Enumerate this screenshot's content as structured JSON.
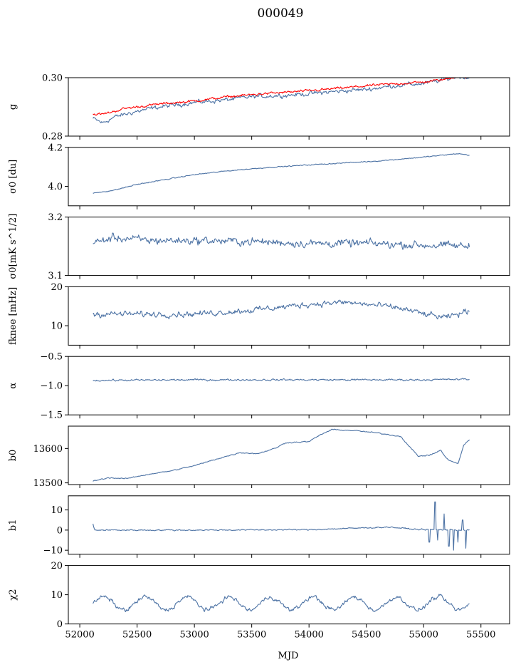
{
  "title": "000049",
  "colors": {
    "series_primary": "#4c72a4",
    "series_red": "#ff0000"
  },
  "chart_data": {
    "type": "line",
    "xlabel": "MJD",
    "xlim": [
      51900,
      55750
    ],
    "xticks": [
      52000,
      52500,
      53000,
      53500,
      54000,
      54500,
      55000,
      55500
    ],
    "xtick_labels": [
      "52000",
      "52500",
      "53000",
      "53500",
      "54000",
      "54500",
      "55000",
      "55500"
    ],
    "x_data_range": [
      52115,
      55400
    ],
    "panels": [
      {
        "ylabel": "g",
        "ylim": [
          0.28,
          0.3
        ],
        "yticks": [
          0.28,
          0.3
        ],
        "ytick_labels": [
          "0.28",
          "0.30"
        ],
        "series": [
          {
            "color": "#4c72a4",
            "points": [
              [
                52115,
                0.286
              ],
              [
                52200,
                0.2845
              ],
              [
                52300,
                0.2865
              ],
              [
                52500,
                0.2885
              ],
              [
                52700,
                0.29
              ],
              [
                53000,
                0.2915
              ],
              [
                53300,
                0.2925
              ],
              [
                53500,
                0.2935
              ],
              [
                53800,
                0.294
              ],
              [
                54000,
                0.2945
              ],
              [
                54300,
                0.2955
              ],
              [
                54500,
                0.296
              ],
              [
                54800,
                0.2975
              ],
              [
                55000,
                0.298
              ],
              [
                55200,
                0.2995
              ],
              [
                55300,
                0.3005
              ],
              [
                55400,
                0.3
              ]
            ],
            "noise": 0.0012
          },
          {
            "color": "#ff0000",
            "points": [
              [
                52115,
                0.2875
              ],
              [
                52200,
                0.2875
              ],
              [
                52400,
                0.2895
              ],
              [
                52700,
                0.291
              ],
              [
                53000,
                0.292
              ],
              [
                53300,
                0.2935
              ],
              [
                53600,
                0.2945
              ],
              [
                54000,
                0.2955
              ],
              [
                54300,
                0.2965
              ],
              [
                54600,
                0.2975
              ],
              [
                55000,
                0.2985
              ],
              [
                55200,
                0.2995
              ],
              [
                55300,
                0.3005
              ],
              [
                55400,
                0.3
              ]
            ],
            "noise": 0.0007
          }
        ]
      },
      {
        "ylabel": "σ0 [du]",
        "ylim": [
          3.9,
          4.2
        ],
        "yticks": [
          4.0,
          4.2
        ],
        "ytick_labels": [
          "4.0",
          "4.2"
        ],
        "series": [
          {
            "color": "#4c72a4",
            "points": [
              [
                52115,
                3.965
              ],
              [
                52300,
                3.98
              ],
              [
                52500,
                4.01
              ],
              [
                52800,
                4.04
              ],
              [
                53000,
                4.06
              ],
              [
                53300,
                4.08
              ],
              [
                53600,
                4.095
              ],
              [
                54000,
                4.11
              ],
              [
                54300,
                4.12
              ],
              [
                54600,
                4.13
              ],
              [
                55000,
                4.15
              ],
              [
                55300,
                4.168
              ],
              [
                55400,
                4.16
              ]
            ],
            "noise": 0.004
          }
        ]
      },
      {
        "ylabel": "σ0[mK s^1/2]",
        "ylim": [
          3.1,
          3.2
        ],
        "yticks": [
          3.1,
          3.2
        ],
        "ytick_labels": [
          "3.1",
          "3.2"
        ],
        "series": [
          {
            "color": "#4c72a4",
            "points": [
              [
                52115,
                3.155
              ],
              [
                52300,
                3.165
              ],
              [
                52600,
                3.16
              ],
              [
                53000,
                3.16
              ],
              [
                53500,
                3.158
              ],
              [
                54000,
                3.155
              ],
              [
                54500,
                3.155
              ],
              [
                55000,
                3.152
              ],
              [
                55400,
                3.15
              ]
            ],
            "noise": 0.011
          }
        ]
      },
      {
        "ylabel": "fknee [mHz]",
        "ylim": [
          5,
          20
        ],
        "yticks": [
          10,
          20
        ],
        "ytick_labels": [
          "10",
          "20"
        ],
        "series": [
          {
            "color": "#4c72a4",
            "points": [
              [
                52115,
                13
              ],
              [
                52500,
                13
              ],
              [
                53000,
                13
              ],
              [
                53500,
                14
              ],
              [
                54000,
                15.5
              ],
              [
                54300,
                16
              ],
              [
                54500,
                15.5
              ],
              [
                54800,
                14.5
              ],
              [
                55000,
                13
              ],
              [
                55200,
                12
              ],
              [
                55400,
                14
              ]
            ],
            "noise": 1.2
          }
        ]
      },
      {
        "ylabel": "α",
        "ylim": [
          -1.5,
          -0.5
        ],
        "yticks": [
          -1.5,
          -1.0,
          -0.5
        ],
        "ytick_labels": [
          "−1.5",
          "−1.0",
          "−0.5"
        ],
        "series": [
          {
            "color": "#4c72a4",
            "points": [
              [
                52115,
                -0.91
              ],
              [
                53000,
                -0.9
              ],
              [
                54000,
                -0.9
              ],
              [
                55000,
                -0.9
              ],
              [
                55400,
                -0.89
              ]
            ],
            "noise": 0.025
          }
        ]
      },
      {
        "ylabel": "b0",
        "ylim": [
          13495,
          13665
        ],
        "yticks": [
          13500,
          13600
        ],
        "ytick_labels": [
          "13500",
          "13600"
        ],
        "series": [
          {
            "color": "#4c72a4",
            "points": [
              [
                52115,
                13505
              ],
              [
                52250,
                13515
              ],
              [
                52400,
                13512
              ],
              [
                52600,
                13525
              ],
              [
                52800,
                13535
              ],
              [
                53000,
                13550
              ],
              [
                53200,
                13570
              ],
              [
                53400,
                13588
              ],
              [
                53550,
                13585
              ],
              [
                53700,
                13600
              ],
              [
                53800,
                13617
              ],
              [
                54000,
                13620
              ],
              [
                54100,
                13640
              ],
              [
                54200,
                13655
              ],
              [
                54400,
                13652
              ],
              [
                54600,
                13645
              ],
              [
                54800,
                13635
              ],
              [
                54950,
                13578
              ],
              [
                55050,
                13580
              ],
              [
                55150,
                13595
              ],
              [
                55200,
                13570
              ],
              [
                55300,
                13555
              ],
              [
                55350,
                13610
              ],
              [
                55400,
                13625
              ]
            ],
            "noise": 2.5
          }
        ]
      },
      {
        "ylabel": "b1",
        "ylim": [
          -12,
          17
        ],
        "yticks": [
          -10,
          0,
          10
        ],
        "ytick_labels": [
          "−10",
          "0",
          "10"
        ],
        "series": [
          {
            "color": "#4c72a4",
            "points": [
              [
                52115,
                3
              ],
              [
                52130,
                0
              ],
              [
                53000,
                0
              ],
              [
                54000,
                0.2
              ],
              [
                54700,
                1.5
              ],
              [
                54900,
                0.5
              ],
              [
                55000,
                0.3
              ],
              [
                55400,
                0
              ]
            ],
            "noise": 0.5,
            "spikes": [
              [
                55050,
                -6
              ],
              [
                55100,
                14
              ],
              [
                55120,
                -5
              ],
              [
                55180,
                8
              ],
              [
                55220,
                -8
              ],
              [
                55260,
                -10
              ],
              [
                55300,
                -6
              ],
              [
                55340,
                5
              ],
              [
                55370,
                -9
              ]
            ]
          }
        ]
      },
      {
        "ylabel": "χ2",
        "ylim": [
          0,
          20
        ],
        "yticks": [
          0,
          10,
          20
        ],
        "ytick_labels": [
          "0",
          "10",
          "20"
        ],
        "series": [
          {
            "color": "#4c72a4",
            "points": [
              [
                52115,
                7
              ],
              [
                55400,
                7
              ]
            ],
            "noise": 1.2,
            "oscillation": {
              "amplitude": 2.2,
              "period": 365
            }
          }
        ]
      }
    ]
  }
}
